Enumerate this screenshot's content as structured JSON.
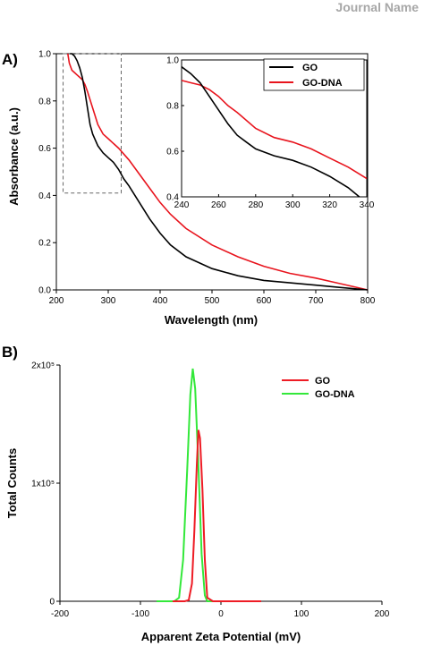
{
  "header": {
    "label": "Journal Name"
  },
  "colors": {
    "go_a": "#000000",
    "go_dna_a": "#e8141d",
    "go_b": "#ee1c25",
    "go_dna_b": "#33e83a",
    "dash": "#666666"
  },
  "chart_data": [
    {
      "panel": "A)",
      "type": "line",
      "xlabel": "Wavelength (nm)",
      "ylabel": "Absorbance (a.u.)",
      "xlim": [
        200,
        800
      ],
      "ylim": [
        0.0,
        1.0
      ],
      "xticks": [
        "200",
        "300",
        "400",
        "500",
        "600",
        "700",
        "800"
      ],
      "yticks": [
        "0.0",
        "0.2",
        "0.4",
        "0.6",
        "0.8",
        "1.0"
      ],
      "series": [
        {
          "name": "GO",
          "color": "#000000",
          "x": [
            226,
            230,
            235,
            240,
            245,
            250,
            255,
            260,
            265,
            270,
            280,
            290,
            300,
            310,
            320,
            330,
            340,
            360,
            380,
            400,
            420,
            450,
            500,
            550,
            600,
            650,
            700,
            750,
            800
          ],
          "y": [
            1.0,
            1.0,
            0.99,
            0.97,
            0.94,
            0.9,
            0.84,
            0.77,
            0.7,
            0.66,
            0.61,
            0.58,
            0.56,
            0.54,
            0.51,
            0.47,
            0.44,
            0.37,
            0.3,
            0.24,
            0.19,
            0.14,
            0.09,
            0.06,
            0.04,
            0.03,
            0.02,
            0.01,
            0.0
          ]
        },
        {
          "name": "GO-DNA",
          "color": "#e8141d",
          "x": [
            222,
            225,
            230,
            235,
            240,
            245,
            250,
            255,
            260,
            270,
            280,
            290,
            300,
            320,
            340,
            360,
            380,
            400,
            420,
            450,
            500,
            550,
            600,
            650,
            700,
            750,
            800
          ],
          "y": [
            1.0,
            0.96,
            0.93,
            0.92,
            0.91,
            0.9,
            0.89,
            0.87,
            0.84,
            0.77,
            0.7,
            0.66,
            0.64,
            0.6,
            0.55,
            0.49,
            0.43,
            0.37,
            0.32,
            0.26,
            0.19,
            0.14,
            0.1,
            0.07,
            0.05,
            0.025,
            0.0
          ]
        }
      ],
      "legend": "top-right (inset)",
      "zoom_box": {
        "x": [
          213,
          325
        ],
        "y": [
          0.41,
          1.0
        ]
      },
      "inset": {
        "xlim": [
          240,
          340
        ],
        "ylim": [
          0.4,
          1.0
        ],
        "xticks": [
          "240",
          "260",
          "280",
          "300",
          "320",
          "340"
        ],
        "yticks": [
          "0.4",
          "0.6",
          "0.8",
          "1.0"
        ],
        "series": [
          {
            "name": "GO",
            "color": "#000000",
            "x": [
              240,
              245,
              250,
              255,
              260,
              265,
              270,
              275,
              280,
              290,
              300,
              310,
              320,
              330,
              336
            ],
            "y": [
              0.97,
              0.94,
              0.9,
              0.84,
              0.78,
              0.72,
              0.67,
              0.64,
              0.61,
              0.58,
              0.56,
              0.53,
              0.49,
              0.44,
              0.4
            ]
          },
          {
            "name": "GO-DNA",
            "color": "#e8141d",
            "x": [
              240,
              245,
              250,
              255,
              260,
              265,
              270,
              280,
              290,
              300,
              310,
              320,
              330,
              340
            ],
            "y": [
              0.91,
              0.9,
              0.89,
              0.87,
              0.84,
              0.8,
              0.77,
              0.7,
              0.66,
              0.64,
              0.61,
              0.57,
              0.53,
              0.48
            ]
          }
        ]
      }
    },
    {
      "panel": "B)",
      "type": "line",
      "xlabel": "Apparent Zeta Potential (mV)",
      "ylabel": "Total Counts",
      "xlim": [
        -200,
        200
      ],
      "ylim": [
        0,
        200000
      ],
      "xticks": [
        "-200",
        "-100",
        "0",
        "100",
        "200"
      ],
      "yticks": [
        "0",
        "1x10⁵",
        "2x10⁵"
      ],
      "legend": "top-right",
      "series": [
        {
          "name": "GO",
          "color": "#ee1c25",
          "x": [
            -60,
            -45,
            -40,
            -36,
            -33,
            -30,
            -28,
            -26,
            -23,
            -20,
            -17,
            -10,
            0,
            50
          ],
          "y": [
            0,
            0,
            1000,
            15000,
            60000,
            115000,
            145000,
            138000,
            95000,
            35000,
            3000,
            0,
            0,
            0
          ]
        },
        {
          "name": "GO-DNA",
          "color": "#33e83a",
          "x": [
            -80,
            -58,
            -52,
            -47,
            -42,
            -38,
            -35,
            -32,
            -28,
            -24,
            -20,
            -17,
            -10,
            50
          ],
          "y": [
            0,
            0,
            3000,
            35000,
            110000,
            175000,
            197000,
            180000,
            115000,
            40000,
            5000,
            0,
            0,
            0
          ]
        }
      ]
    }
  ]
}
